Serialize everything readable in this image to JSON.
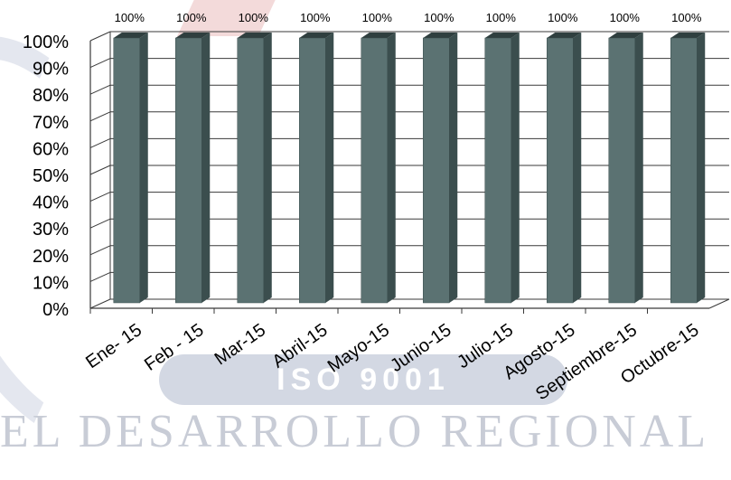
{
  "watermark": {
    "word": "EL DESARROLLO REGIONAL",
    "badge": "ISO 9001"
  },
  "chart_data": {
    "type": "bar",
    "title": "",
    "xlabel": "",
    "ylabel": "",
    "ylim": [
      0,
      100
    ],
    "y_ticks": [
      "0%",
      "10%",
      "20%",
      "30%",
      "40%",
      "50%",
      "60%",
      "70%",
      "80%",
      "90%",
      "100%"
    ],
    "categories": [
      "Ene- 15",
      "Feb - 15",
      "Mar-15",
      "Abril-15",
      "Mayo-15",
      "Junio-15",
      "Julio-15",
      "Agosto-15",
      "Septiembre-15",
      "Octubre-15"
    ],
    "values": [
      100,
      100,
      100,
      100,
      100,
      100,
      100,
      100,
      100,
      100
    ],
    "data_labels": [
      "100%",
      "100%",
      "100%",
      "100%",
      "100%",
      "100%",
      "100%",
      "100%",
      "100%",
      "100%"
    ],
    "grid": true,
    "legend": "none",
    "style": "3d-column",
    "colors": {
      "bar_front": "#5b7272",
      "bar_side": "#3b4e4e",
      "bar_top": "#2f3f3f",
      "grid": "#3a3a3a"
    }
  }
}
